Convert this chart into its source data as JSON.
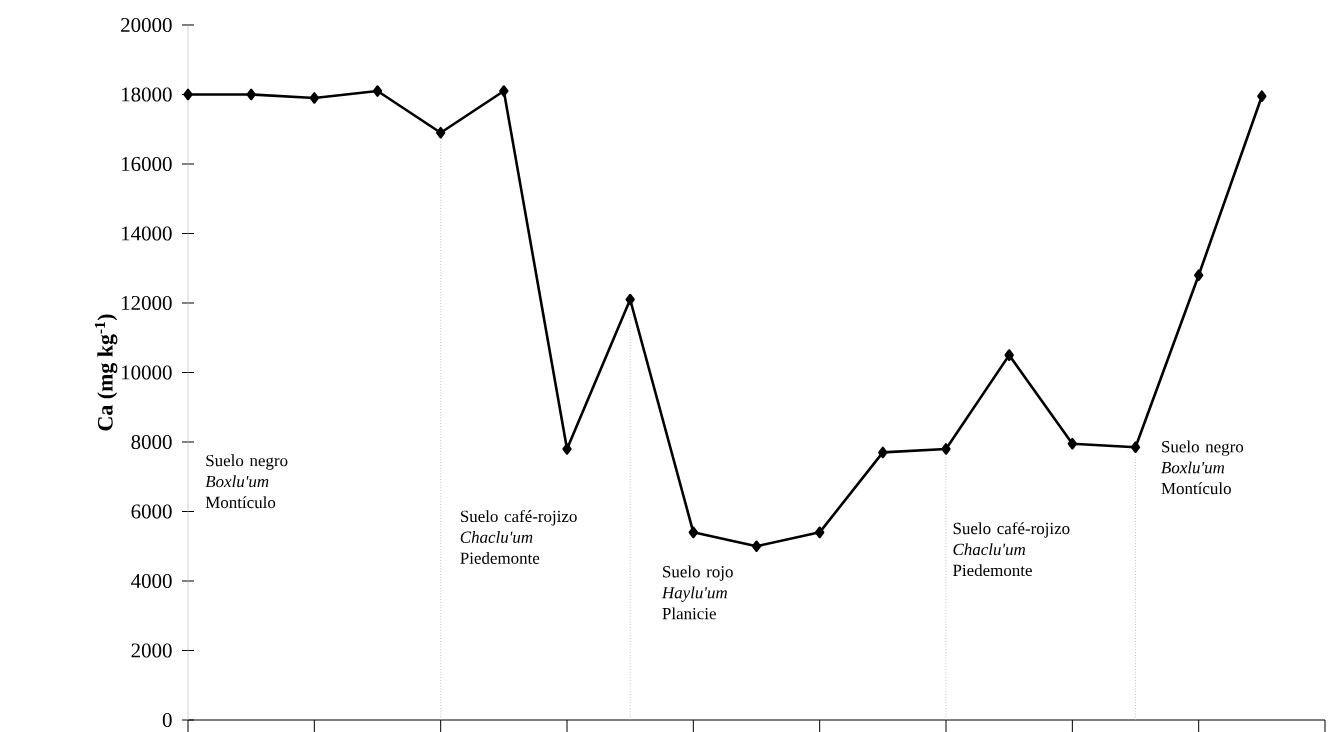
{
  "chart_data": {
    "type": "line",
    "ylabel": "Ca (mg kg$^{-1}$)",
    "categories": [
      null,
      null,
      null,
      null,
      null,
      null,
      null,
      null,
      null,
      null,
      null,
      null,
      null,
      null,
      null,
      null,
      null,
      null
    ],
    "series": [
      {
        "color": "#000000",
        "values": [
          18000,
          18000,
          17900,
          18100,
          16900,
          18100,
          7800,
          12100,
          5400,
          5000,
          5400,
          7700,
          7800,
          10500,
          7950,
          7850,
          12800,
          17950
        ]
      }
    ],
    "ylim": [
      0,
      20000
    ],
    "yticks": [
      0,
      2000,
      4000,
      6000,
      8000,
      10000,
      12000,
      14000,
      16000,
      18000,
      20000
    ],
    "marker": "diamond",
    "line_style": "solid",
    "tick_labels": "y",
    "annotations": [
      "Suelo negro *Boxlu'um* Montículo",
      "Suelo café-rojizo *Chaclu'um* Piedemonte",
      "Suelo rojo *Haylu'um* Planicie",
      "Suelo café-rojizo *Chaclu'um* Piedemonte",
      "Suelo negro *Boxlu'um* Montículo"
    ]
  }
}
